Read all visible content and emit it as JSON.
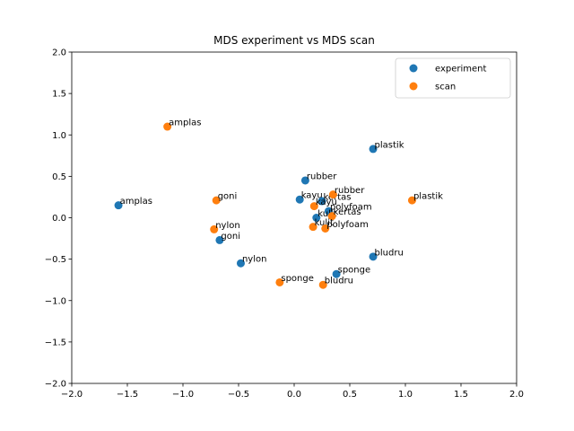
{
  "chart_data": {
    "type": "scatter",
    "title": "MDS experiment vs MDS scan",
    "xlabel": "",
    "ylabel": "",
    "xlim": [
      -2.0,
      2.0
    ],
    "ylim": [
      -2.0,
      2.0
    ],
    "xticks": [
      "−2.0",
      "−1.5",
      "−1.0",
      "−0.5",
      "0.0",
      "0.5",
      "1.0",
      "1.5",
      "2.0"
    ],
    "yticks": [
      "−2.0",
      "−1.5",
      "−1.0",
      "−0.5",
      "0.0",
      "0.5",
      "1.0",
      "1.5",
      "2.0"
    ],
    "xtick_values": [
      -2.0,
      -1.5,
      -1.0,
      -0.5,
      0.0,
      0.5,
      1.0,
      1.5,
      2.0
    ],
    "ytick_values": [
      -2.0,
      -1.5,
      -1.0,
      -0.5,
      0.0,
      0.5,
      1.0,
      1.5,
      2.0
    ],
    "grid": false,
    "legend_position": "top-right",
    "series": [
      {
        "name": "experiment",
        "color": "#1f77b4",
        "points": [
          {
            "label": "plastik",
            "x": 0.71,
            "y": 0.83
          },
          {
            "label": "rubber",
            "x": 0.1,
            "y": 0.45
          },
          {
            "label": "amplas",
            "x": -1.58,
            "y": 0.15
          },
          {
            "label": "kayu",
            "x": 0.05,
            "y": 0.22
          },
          {
            "label": "kertas",
            "x": 0.25,
            "y": 0.2
          },
          {
            "label": "polyfoam",
            "x": 0.31,
            "y": 0.08
          },
          {
            "label": "kulit",
            "x": 0.2,
            "y": 0.0
          },
          {
            "label": "goni",
            "x": -0.67,
            "y": -0.27
          },
          {
            "label": "nylon",
            "x": -0.48,
            "y": -0.55
          },
          {
            "label": "bludru",
            "x": 0.71,
            "y": -0.47
          },
          {
            "label": "sponge",
            "x": 0.38,
            "y": -0.68
          }
        ]
      },
      {
        "name": "scan",
        "color": "#ff7f0e",
        "points": [
          {
            "label": "amplas",
            "x": -1.14,
            "y": 1.1
          },
          {
            "label": "rubber",
            "x": 0.35,
            "y": 0.28
          },
          {
            "label": "plastik",
            "x": 1.06,
            "y": 0.21
          },
          {
            "label": "goni",
            "x": -0.7,
            "y": 0.21
          },
          {
            "label": "kayu",
            "x": 0.18,
            "y": 0.14
          },
          {
            "label": "kertas",
            "x": 0.34,
            "y": 0.02
          },
          {
            "label": "nylon",
            "x": -0.72,
            "y": -0.14
          },
          {
            "label": "kulit",
            "x": 0.17,
            "y": -0.11
          },
          {
            "label": "polyfoam",
            "x": 0.28,
            "y": -0.13
          },
          {
            "label": "sponge",
            "x": -0.13,
            "y": -0.78
          },
          {
            "label": "bludru",
            "x": 0.26,
            "y": -0.81
          }
        ]
      }
    ]
  }
}
